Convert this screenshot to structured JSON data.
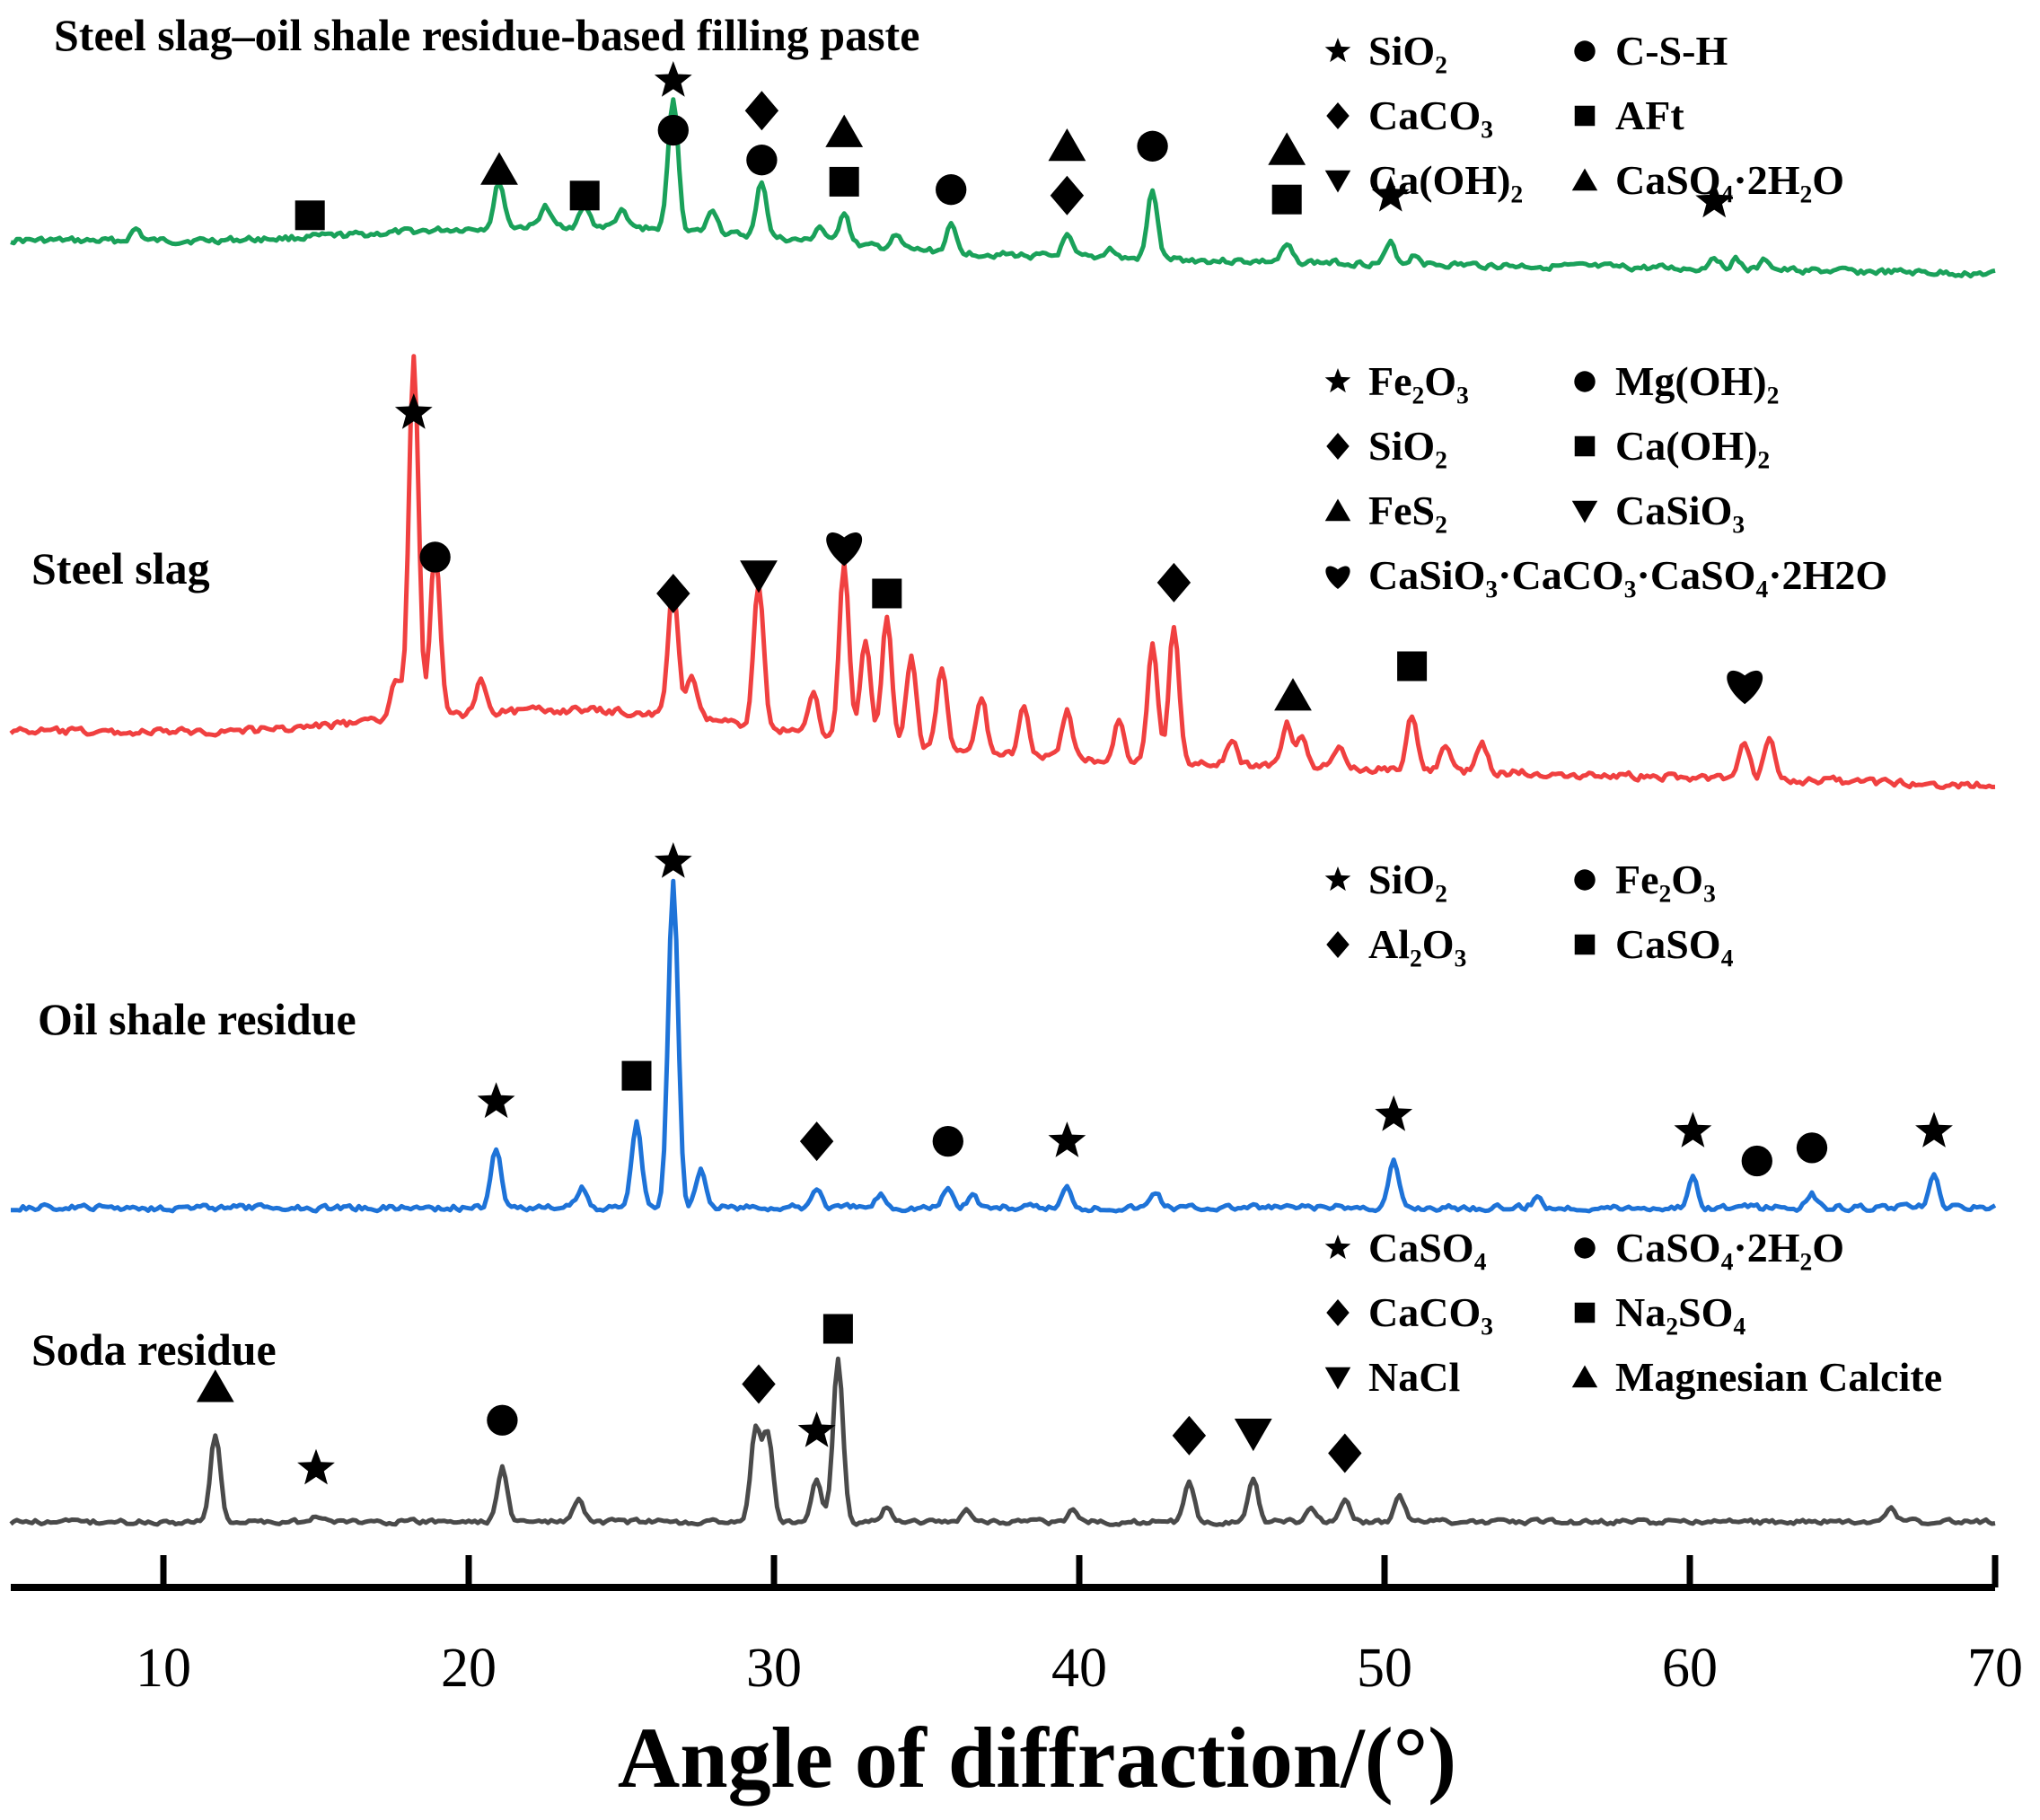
{
  "chart_data": {
    "type": "line",
    "title": "",
    "xlabel": "Angle of diffraction/(°)",
    "ylabel": "",
    "xlim": [
      5,
      70
    ],
    "xticks": [
      10,
      20,
      30,
      40,
      50,
      60,
      70
    ],
    "grid": false,
    "series": [
      {
        "name": "Steel slag–oil shale residue-based filling paste",
        "color": "#1aa15a",
        "baseline": 0.12,
        "start_level": 0.17,
        "end_level": 0.0,
        "peaks": [
          [
            9.1,
            0.06
          ],
          [
            21.0,
            0.23
          ],
          [
            22.5,
            0.1
          ],
          [
            23.8,
            0.1
          ],
          [
            25.0,
            0.08
          ],
          [
            26.7,
            0.67
          ],
          [
            28.0,
            0.12
          ],
          [
            29.6,
            0.28
          ],
          [
            31.5,
            0.08
          ],
          [
            32.3,
            0.17
          ],
          [
            34.0,
            0.06
          ],
          [
            35.8,
            0.13
          ],
          [
            39.6,
            0.1
          ],
          [
            41.0,
            0.05
          ],
          [
            42.4,
            0.35
          ],
          [
            46.8,
            0.08
          ],
          [
            50.2,
            0.1
          ],
          [
            51.0,
            0.05
          ],
          [
            60.8,
            0.07
          ],
          [
            61.5,
            0.05
          ],
          [
            62.5,
            0.05
          ]
        ],
        "markers": [
          {
            "x": 14.8,
            "sym": "square"
          },
          {
            "x": 21.0,
            "sym": "triangle-up"
          },
          {
            "x": 23.8,
            "sym": "square"
          },
          {
            "x": 26.7,
            "sym": "circle"
          },
          {
            "x": 26.7,
            "sym": "star"
          },
          {
            "x": 29.6,
            "sym": "circle"
          },
          {
            "x": 29.6,
            "sym": "diamond"
          },
          {
            "x": 32.3,
            "sym": "square"
          },
          {
            "x": 32.3,
            "sym": "triangle-up"
          },
          {
            "x": 35.8,
            "sym": "circle"
          },
          {
            "x": 39.6,
            "sym": "diamond"
          },
          {
            "x": 39.6,
            "sym": "triangle-up"
          },
          {
            "x": 42.4,
            "sym": "circle"
          },
          {
            "x": 46.8,
            "sym": "square"
          },
          {
            "x": 46.8,
            "sym": "triangle-up"
          },
          {
            "x": 50.2,
            "sym": "star"
          },
          {
            "x": 60.8,
            "sym": "star"
          }
        ],
        "legend": [
          {
            "sym": "star",
            "label": "SiO₂"
          },
          {
            "sym": "circle",
            "label": "C-S-H"
          },
          {
            "sym": "diamond",
            "label": "CaCO₃"
          },
          {
            "sym": "square",
            "label": "AFt"
          },
          {
            "sym": "triangle-down",
            "label": "Ca(OH)₂"
          },
          {
            "sym": "triangle-up",
            "label": "CaSO₄·2H₂O"
          }
        ]
      },
      {
        "name": "Steel slag",
        "color": "#f04040",
        "baseline": 0.1,
        "start_level": 0.15,
        "end_level": 0.0,
        "peaks": [
          [
            17.6,
            0.12
          ],
          [
            18.2,
            1.0
          ],
          [
            18.9,
            0.45
          ],
          [
            20.4,
            0.1
          ],
          [
            26.7,
            0.35
          ],
          [
            27.3,
            0.12
          ],
          [
            29.5,
            0.4
          ],
          [
            31.3,
            0.12
          ],
          [
            32.3,
            0.48
          ],
          [
            33.0,
            0.28
          ],
          [
            33.7,
            0.35
          ],
          [
            34.5,
            0.25
          ],
          [
            35.5,
            0.22
          ],
          [
            36.8,
            0.15
          ],
          [
            38.2,
            0.14
          ],
          [
            39.6,
            0.13
          ],
          [
            41.3,
            0.11
          ],
          [
            42.4,
            0.32
          ],
          [
            43.1,
            0.38
          ],
          [
            45.0,
            0.06
          ],
          [
            46.8,
            0.12
          ],
          [
            47.3,
            0.08
          ],
          [
            48.5,
            0.05
          ],
          [
            50.9,
            0.15
          ],
          [
            52.0,
            0.07
          ],
          [
            53.2,
            0.08
          ],
          [
            61.8,
            0.1
          ],
          [
            62.6,
            0.12
          ]
        ],
        "markers": [
          {
            "x": 18.2,
            "sym": "star"
          },
          {
            "x": 18.9,
            "sym": "circle"
          },
          {
            "x": 26.7,
            "sym": "diamond"
          },
          {
            "x": 29.5,
            "sym": "triangle-down"
          },
          {
            "x": 32.3,
            "sym": "heart"
          },
          {
            "x": 33.7,
            "sym": "square"
          },
          {
            "x": 43.1,
            "sym": "diamond"
          },
          {
            "x": 47.0,
            "sym": "triangle-up"
          },
          {
            "x": 50.9,
            "sym": "square"
          },
          {
            "x": 61.8,
            "sym": "heart"
          }
        ],
        "legend": [
          {
            "sym": "star",
            "label": "Fe₂O₃"
          },
          {
            "sym": "circle",
            "label": "Mg(OH)₂"
          },
          {
            "sym": "diamond",
            "label": "SiO₂"
          },
          {
            "sym": "square",
            "label": "Ca(OH)₂"
          },
          {
            "sym": "triangle-up",
            "label": "FeS₂"
          },
          {
            "sym": "triangle-down",
            "label": "CaSiO₃"
          },
          {
            "sym": "heart",
            "label": "CaSiO₃·CaCO₃·CaSO₄·2H2O"
          }
        ]
      },
      {
        "name": "Oil shale residue",
        "color": "#1e73d8",
        "baseline": 0.0,
        "start_level": 0.0,
        "end_level": 0.0,
        "peaks": [
          [
            20.9,
            0.18
          ],
          [
            23.7,
            0.06
          ],
          [
            25.5,
            0.26
          ],
          [
            26.7,
            1.0
          ],
          [
            27.6,
            0.12
          ],
          [
            31.4,
            0.06
          ],
          [
            33.5,
            0.04
          ],
          [
            35.7,
            0.06
          ],
          [
            36.5,
            0.04
          ],
          [
            39.6,
            0.06
          ],
          [
            42.5,
            0.05
          ],
          [
            50.3,
            0.14
          ],
          [
            55.0,
            0.03
          ],
          [
            60.1,
            0.09
          ],
          [
            64.0,
            0.04
          ],
          [
            68.0,
            0.09
          ]
        ],
        "markers": [
          {
            "x": 20.9,
            "sym": "star"
          },
          {
            "x": 25.5,
            "sym": "square"
          },
          {
            "x": 26.7,
            "sym": "star"
          },
          {
            "x": 31.4,
            "sym": "diamond"
          },
          {
            "x": 35.7,
            "sym": "circle"
          },
          {
            "x": 39.6,
            "sym": "star"
          },
          {
            "x": 50.3,
            "sym": "star"
          },
          {
            "x": 60.1,
            "sym": "star"
          },
          {
            "x": 62.2,
            "sym": "circle"
          },
          {
            "x": 64.0,
            "sym": "circle"
          },
          {
            "x": 68.0,
            "sym": "star"
          }
        ],
        "legend": [
          {
            "sym": "star",
            "label": "SiO₂"
          },
          {
            "sym": "circle",
            "label": "Fe₂O₃"
          },
          {
            "sym": "diamond",
            "label": "Al₂O₃"
          },
          {
            "sym": "square",
            "label": "CaSO₄"
          }
        ]
      },
      {
        "name": "Soda residue",
        "color": "#4a4a4a",
        "baseline": 0.0,
        "start_level": 0.0,
        "end_level": 0.0,
        "peaks": [
          [
            11.7,
            0.4
          ],
          [
            15.0,
            0.03
          ],
          [
            21.1,
            0.25
          ],
          [
            23.6,
            0.1
          ],
          [
            29.4,
            0.42
          ],
          [
            29.8,
            0.4
          ],
          [
            31.4,
            0.2
          ],
          [
            32.1,
            0.75
          ],
          [
            33.7,
            0.07
          ],
          [
            36.3,
            0.06
          ],
          [
            39.8,
            0.05
          ],
          [
            43.6,
            0.18
          ],
          [
            45.7,
            0.19
          ],
          [
            47.6,
            0.07
          ],
          [
            48.7,
            0.1
          ],
          [
            50.5,
            0.12
          ],
          [
            66.6,
            0.06
          ]
        ],
        "markers": [
          {
            "x": 11.7,
            "sym": "triangle-up"
          },
          {
            "x": 15.0,
            "sym": "star"
          },
          {
            "x": 21.1,
            "sym": "circle"
          },
          {
            "x": 29.5,
            "sym": "diamond"
          },
          {
            "x": 31.4,
            "sym": "star"
          },
          {
            "x": 32.1,
            "sym": "square"
          },
          {
            "x": 43.6,
            "sym": "diamond"
          },
          {
            "x": 45.7,
            "sym": "triangle-down"
          },
          {
            "x": 48.7,
            "sym": "diamond"
          }
        ],
        "legend": [
          {
            "sym": "star",
            "label": "CaSO₄"
          },
          {
            "sym": "circle",
            "label": "CaSO₄·2H₂O"
          },
          {
            "sym": "diamond",
            "label": "CaCO₃"
          },
          {
            "sym": "square",
            "label": "Na₂SO₄"
          },
          {
            "sym": "triangle-down",
            "label": "NaCl"
          },
          {
            "sym": "triangle-up",
            "label": "Magnesian Calcite"
          }
        ]
      }
    ]
  }
}
